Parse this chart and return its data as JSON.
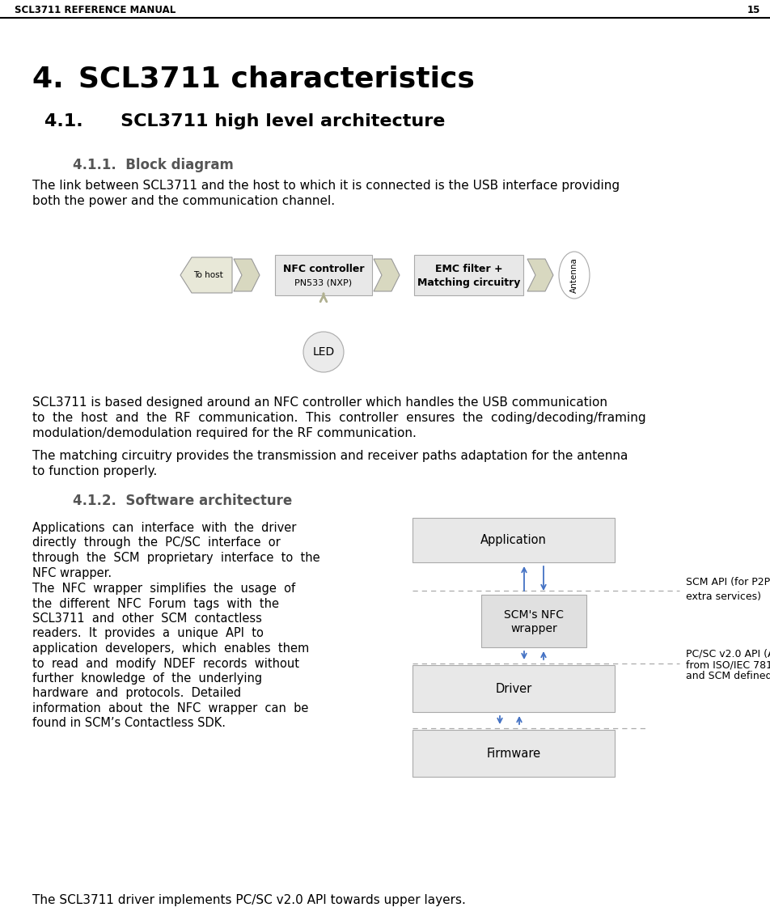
{
  "header_text": "SCL3711 Reference Manual",
  "header_page": "15",
  "title_main": "4. SCL3711 characteristics",
  "title_41": "4.1.      SCL3711 high level architecture",
  "title_411": "4.1.1.  Block diagram",
  "title_412": "4.1.2.  Software architecture",
  "para_412_3": "The SCL3711 driver implements PC/SC v2.0 API towards upper layers.",
  "bg_color": "#ffffff",
  "box_fill": "#e8e8e8",
  "blue_arrow": "#4472c4",
  "dashed_line": "#aaaaaa",
  "olive_arrow": "#c8c8a0",
  "chevron_fill": "#d8d8c0",
  "to_host_fill": "#e8e8d8"
}
